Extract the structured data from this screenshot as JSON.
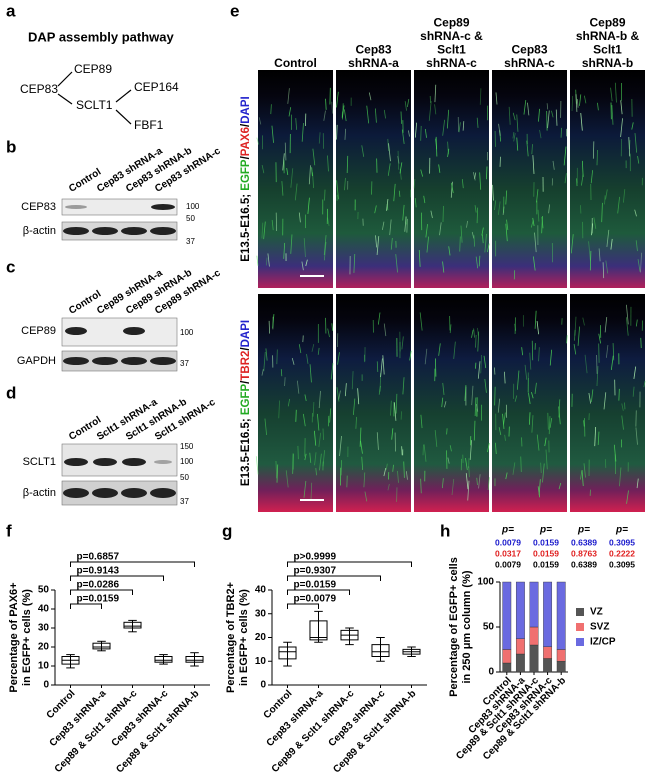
{
  "panel_labels": [
    "a",
    "b",
    "c",
    "d",
    "e",
    "f",
    "g",
    "h"
  ],
  "pathway": {
    "title": "DAP assembly pathway",
    "nodes": [
      "CEP83",
      "CEP89",
      "SCLT1",
      "CEP164",
      "FBF1"
    ]
  },
  "blots": [
    {
      "lanes": [
        "Control",
        "Cep83 shRNA-a",
        "Cep83 shRNA-b",
        "Cep83 shRNA-c"
      ],
      "rows": [
        "CEP83",
        "β-actin"
      ],
      "markers": [
        100,
        50,
        37
      ]
    },
    {
      "lanes": [
        "Control",
        "Cep89 shRNA-a",
        "Cep89 shRNA-b",
        "Cep89 shRNA-c"
      ],
      "rows": [
        "CEP89",
        "GAPDH"
      ],
      "markers": [
        100,
        37
      ]
    },
    {
      "lanes": [
        "Control",
        "Sclt1 shRNA-a",
        "Sclt1 shRNA-b",
        "Sclt1 shRNA-c"
      ],
      "rows": [
        "SCLT1",
        "β-actin"
      ],
      "markers": [
        150,
        100,
        50,
        37
      ]
    }
  ],
  "images": {
    "columns": [
      [
        "Control"
      ],
      [
        "Cep83",
        "shRNA-a"
      ],
      [
        "Cep89",
        "shRNA-c &",
        "Sclt1",
        "shRNA-c"
      ],
      [
        "Cep83",
        "shRNA-c"
      ],
      [
        "Cep89",
        "shRNA-b &",
        "Sclt1",
        "shRNA-b"
      ]
    ],
    "rows": [
      [
        {
          "text": "E13.5-E16.5; ",
          "color": "#000000"
        },
        {
          "text": "EGFP",
          "color": "#22aa22"
        },
        {
          "text": "/",
          "color": "#000000"
        },
        {
          "text": "PAX6",
          "color": "#dd2222"
        },
        {
          "text": "/",
          "color": "#000000"
        },
        {
          "text": "DAPI",
          "color": "#2222cc"
        }
      ],
      [
        {
          "text": "E13.5-E16.5; ",
          "color": "#000000"
        },
        {
          "text": "EGFP",
          "color": "#22aa22"
        },
        {
          "text": "/",
          "color": "#000000"
        },
        {
          "text": "TBR2",
          "color": "#dd2222"
        },
        {
          "text": "/",
          "color": "#000000"
        },
        {
          "text": "DAPI",
          "color": "#2222cc"
        }
      ]
    ]
  },
  "chart_data": [
    {
      "type": "box",
      "y_label": [
        "Percentage of PAX6+",
        "in EGFP+ cells (%)"
      ],
      "categories": [
        "Control",
        "Cep83 shRNA-a",
        "Cep89 & Sclt1 shRNA-c",
        "Cep83 shRNA-c",
        "Cep89 & Sclt1 shRNA-b"
      ],
      "boxes": [
        {
          "min": 9,
          "q1": 11,
          "median": 13,
          "q3": 15,
          "max": 16
        },
        {
          "min": 18,
          "q1": 19,
          "median": 20,
          "q3": 22,
          "max": 23
        },
        {
          "min": 28,
          "q1": 30,
          "median": 31,
          "q3": 33,
          "max": 34
        },
        {
          "min": 11,
          "q1": 12,
          "median": 13,
          "q3": 15,
          "max": 16
        },
        {
          "min": 10,
          "q1": 12,
          "median": 13,
          "q3": 15,
          "max": 17
        }
      ],
      "ylim": [
        0,
        50
      ],
      "yticks": [
        0,
        10,
        20,
        30,
        40,
        50
      ],
      "comparisons": [
        "p=0.0159",
        "p=0.0286",
        "p=0.9143",
        "p=0.6857"
      ]
    },
    {
      "type": "box",
      "y_label": [
        "Percentage of TBR2+",
        "in EGFP+ cells (%)"
      ],
      "categories": [
        "Control",
        "Cep83 shRNA-a",
        "Cep89 & Sclt1 shRNA-c",
        "Cep83 shRNA-c",
        "Cep89 & Sclt1 shRNA-b"
      ],
      "boxes": [
        {
          "min": 8,
          "q1": 11,
          "median": 14,
          "q3": 16,
          "max": 18
        },
        {
          "min": 18,
          "q1": 19,
          "median": 20,
          "q3": 27,
          "max": 31
        },
        {
          "min": 17,
          "q1": 19,
          "median": 21,
          "q3": 23,
          "max": 24
        },
        {
          "min": 10,
          "q1": 12,
          "median": 14,
          "q3": 17,
          "max": 20
        },
        {
          "min": 12,
          "q1": 13,
          "median": 14,
          "q3": 15,
          "max": 16
        }
      ],
      "ylim": [
        0,
        40
      ],
      "yticks": [
        0,
        10,
        20,
        30,
        40
      ],
      "comparisons": [
        "p=0.0079",
        "p=0.0159",
        "p=0.9307",
        "p>0.9999"
      ]
    },
    {
      "type": "stacked_bar",
      "y_label": [
        "Percentage of EGFP+ cells",
        "in 250 μm column (%)"
      ],
      "categories": [
        "Control",
        "Cep83 shRNA-a",
        "Cep89 & Sclt1 shRNA-c",
        "Cep83 shRNA-c",
        "Cep89 & Sclt1 shRNA-b"
      ],
      "series": [
        {
          "name": "VZ",
          "color": "#555555",
          "values": [
            10,
            20,
            30,
            15,
            12
          ]
        },
        {
          "name": "SVZ",
          "color": "#f07070",
          "values": [
            15,
            17,
            20,
            13,
            13
          ]
        },
        {
          "name": "IZ/CP",
          "color": "#6a6ae0",
          "values": [
            75,
            63,
            50,
            72,
            75
          ]
        }
      ],
      "ylim": [
        0,
        100
      ],
      "yticks": [
        0,
        50,
        100
      ],
      "p_labels": [
        "p=",
        "p=",
        "p=",
        "p="
      ],
      "p_rows": [
        {
          "color": "#1a1acc",
          "values": [
            "0.0079",
            "0.0159",
            "0.6389",
            "0.3095"
          ]
        },
        {
          "color": "#e02020",
          "values": [
            "0.0317",
            "0.0159",
            "0.8763",
            "0.2222"
          ]
        },
        {
          "color": "#000000",
          "values": [
            "0.0079",
            "0.0159",
            "0.6389",
            "0.3095"
          ]
        }
      ]
    }
  ]
}
